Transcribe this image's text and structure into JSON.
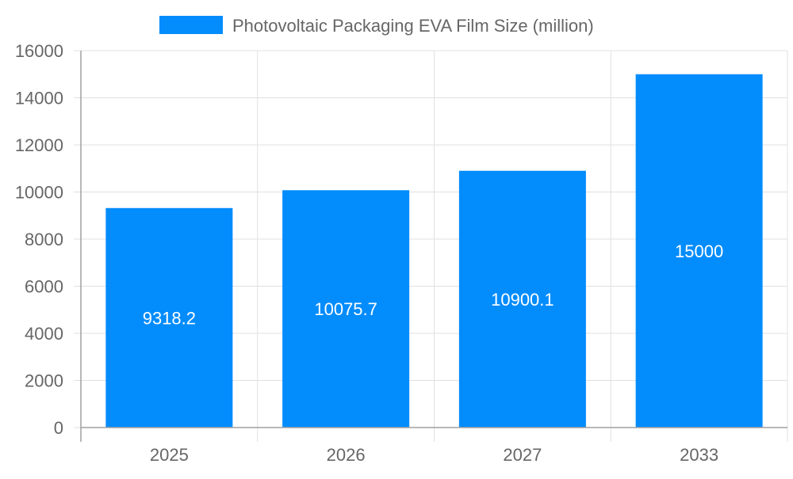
{
  "chart_data": {
    "type": "bar",
    "categories": [
      "2025",
      "2026",
      "2027",
      "2033"
    ],
    "series": [
      {
        "name": "Photovoltaic Packaging EVA Film Size (million)",
        "values": [
          9318.2,
          10075.7,
          10900.1,
          15000
        ]
      }
    ],
    "data_labels": [
      "9318.2",
      "10075.7",
      "10900.1",
      "15000"
    ],
    "ylim": [
      0,
      16000
    ],
    "yticks": [
      0,
      2000,
      4000,
      6000,
      8000,
      10000,
      12000,
      14000,
      16000
    ],
    "grid": true,
    "legend_position": "top",
    "colors": {
      "bar": "#038cfc",
      "grid": "#e0e0e0",
      "axis": "#a0a0a0",
      "text": "#666666",
      "label": "#ffffff"
    }
  }
}
